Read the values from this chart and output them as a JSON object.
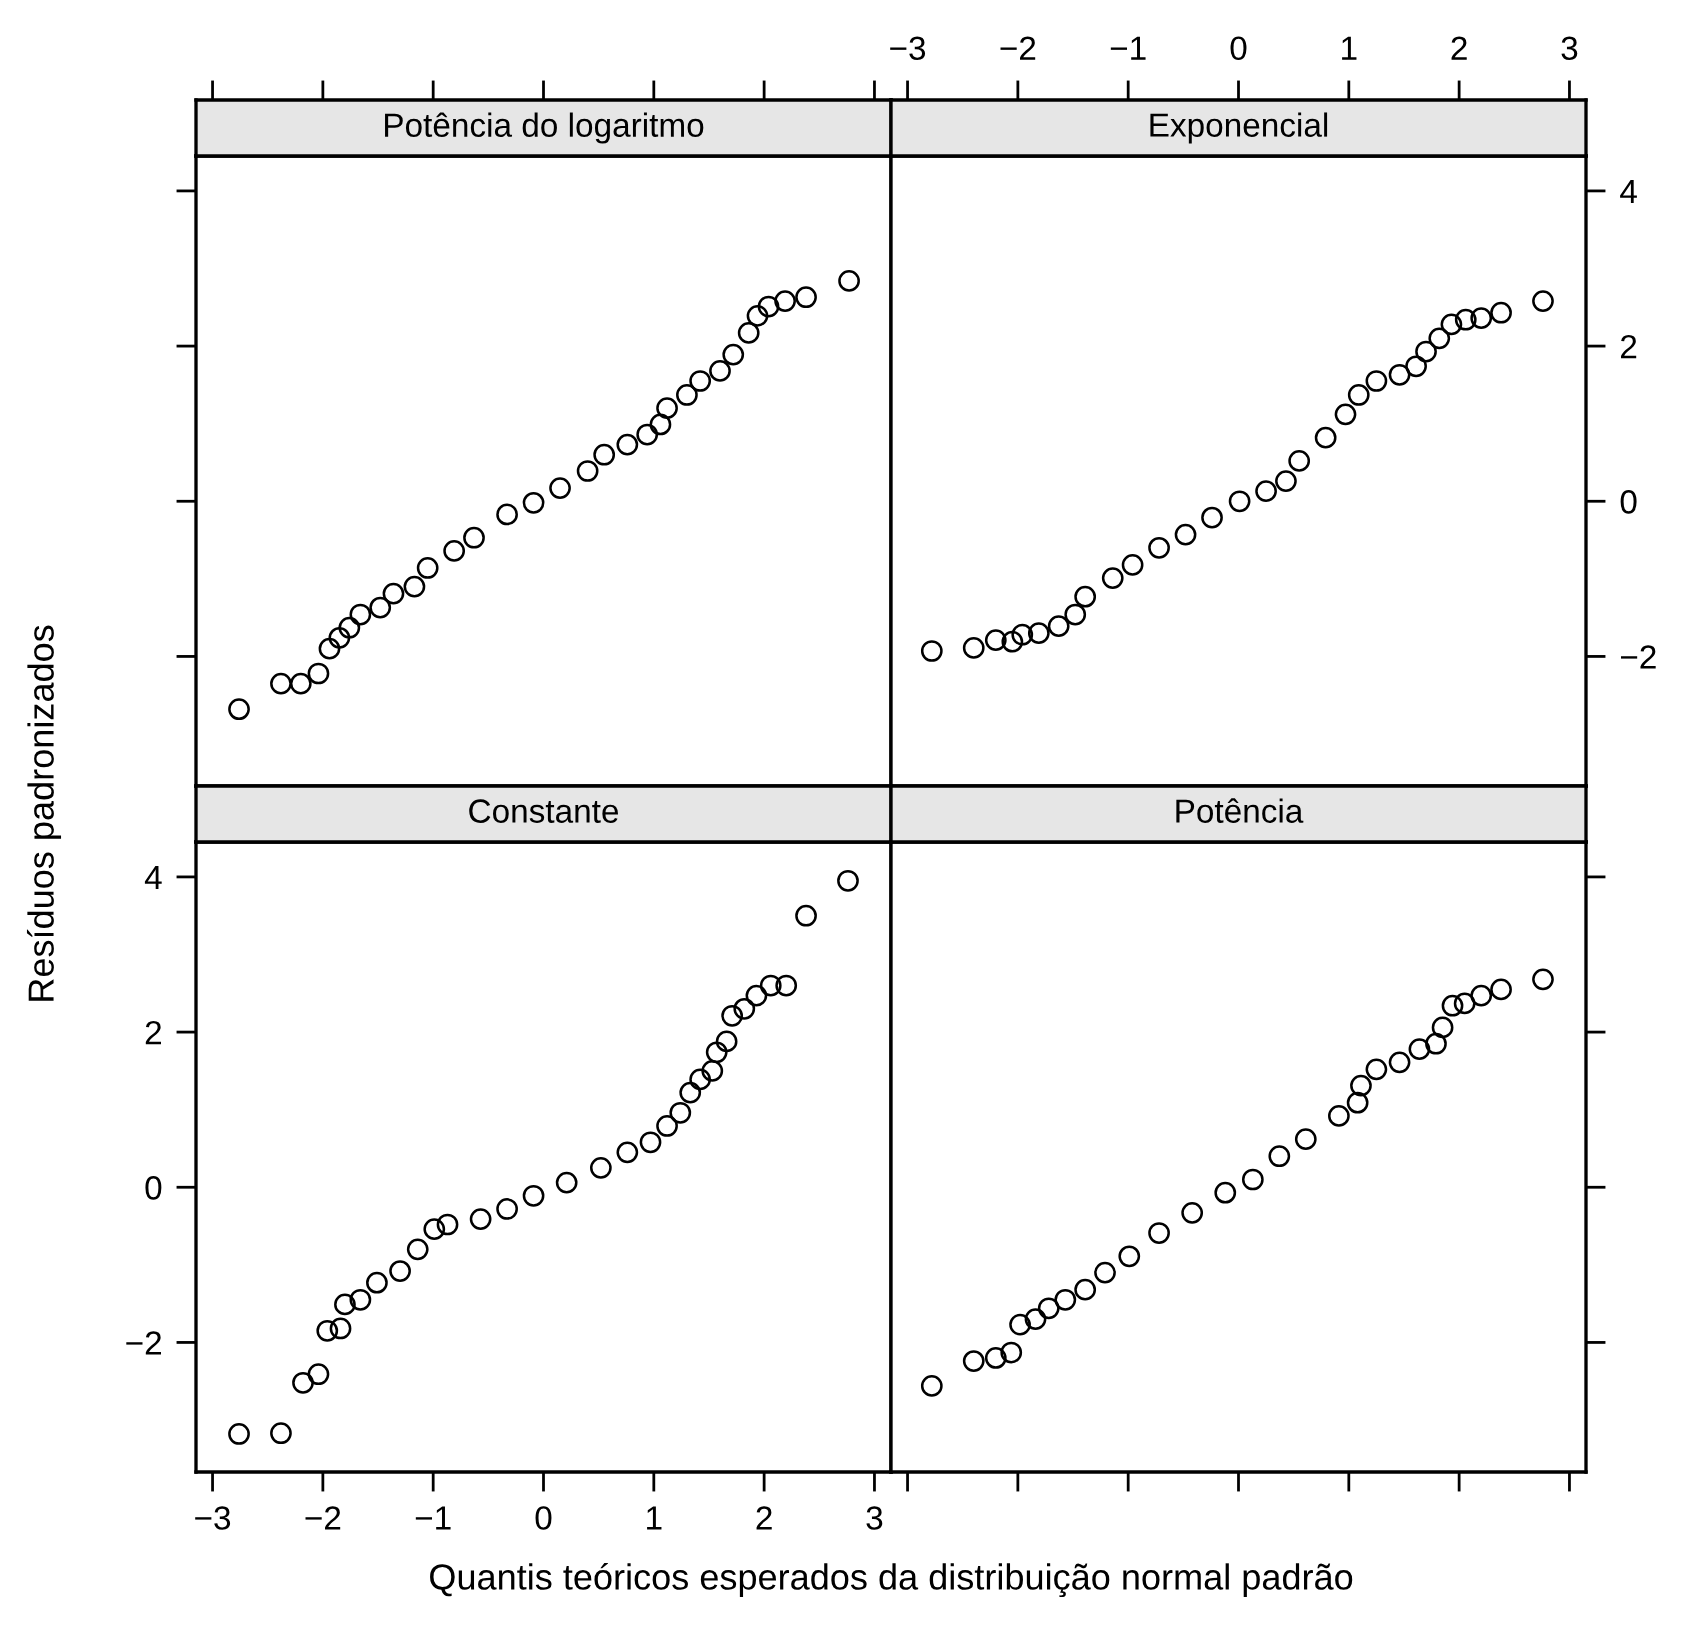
{
  "chart_data": [
    {
      "type": "scatter",
      "title": "Potência do logaritmo",
      "marker": "circle",
      "color": "#000000",
      "tick_labels": false,
      "x": [
        -2.76,
        -2.38,
        -2.2,
        -2.04,
        -1.94,
        -1.85,
        -1.76,
        -1.66,
        -1.48,
        -1.36,
        -1.17,
        -1.05,
        -0.81,
        -0.63,
        -0.33,
        -0.09,
        0.15,
        0.4,
        0.55,
        0.76,
        0.94,
        1.06,
        1.12,
        1.3,
        1.42,
        1.6,
        1.72,
        1.86,
        1.94,
        2.04,
        2.19,
        2.38,
        2.77
      ],
      "values": [
        -2.68,
        -2.35,
        -2.35,
        -2.22,
        -1.9,
        -1.76,
        -1.63,
        -1.46,
        -1.37,
        -1.19,
        -1.1,
        -0.86,
        -0.64,
        -0.47,
        -0.17,
        -0.02,
        0.17,
        0.39,
        0.6,
        0.73,
        0.86,
        0.99,
        1.2,
        1.37,
        1.55,
        1.68,
        1.89,
        2.17,
        2.39,
        2.51,
        2.58,
        2.63,
        2.84
      ],
      "xlim": [
        -3.15,
        3.15
      ],
      "ylim": [
        -3.67,
        4.45
      ],
      "xticks": [
        -3,
        -2,
        -1,
        0,
        1,
        2,
        3
      ],
      "yticks": [
        -2,
        0,
        2,
        4
      ]
    },
    {
      "type": "scatter",
      "title": "Exponencial",
      "marker": "circle",
      "color": "#000000",
      "x": [
        -2.78,
        -2.4,
        -2.2,
        -2.05,
        -1.96,
        -1.81,
        -1.63,
        -1.48,
        -1.39,
        -1.14,
        -0.96,
        -0.72,
        -0.48,
        -0.24,
        0.01,
        0.25,
        0.43,
        0.55,
        0.79,
        0.97,
        1.09,
        1.25,
        1.46,
        1.61,
        1.7,
        1.82,
        1.93,
        2.06,
        2.2,
        2.38,
        2.76
      ],
      "values": [
        -1.93,
        -1.89,
        -1.79,
        -1.81,
        -1.72,
        -1.7,
        -1.61,
        -1.46,
        -1.23,
        -0.99,
        -0.82,
        -0.6,
        -0.43,
        -0.21,
        0.0,
        0.13,
        0.26,
        0.52,
        0.82,
        1.12,
        1.37,
        1.55,
        1.63,
        1.74,
        1.93,
        2.1,
        2.28,
        2.34,
        2.36,
        2.43,
        2.58
      ],
      "xlim": [
        -3.15,
        3.15
      ],
      "ylim": [
        -3.67,
        4.45
      ],
      "xticks": [
        -3,
        -2,
        -1,
        0,
        1,
        2,
        3
      ],
      "yticks": [
        -2,
        0,
        2,
        4
      ]
    },
    {
      "type": "scatter",
      "title": "Constante",
      "marker": "circle",
      "color": "#000000",
      "xlabel": "Quantis teóricos esperados da distribuição normal padrão",
      "ylabel": "Resíduos padronizados",
      "x": [
        -2.76,
        -2.38,
        -2.18,
        -2.04,
        -1.96,
        -1.84,
        -1.8,
        -1.66,
        -1.51,
        -1.3,
        -1.14,
        -0.99,
        -0.87,
        -0.57,
        -0.33,
        -0.09,
        0.21,
        0.52,
        0.76,
        0.97,
        1.12,
        1.24,
        1.33,
        1.42,
        1.53,
        1.57,
        1.66,
        1.71,
        1.82,
        1.93,
        2.06,
        2.2,
        2.38,
        2.76
      ],
      "values": [
        -3.18,
        -3.17,
        -2.52,
        -2.41,
        -1.85,
        -1.82,
        -1.51,
        -1.45,
        -1.23,
        -1.08,
        -0.8,
        -0.54,
        -0.48,
        -0.41,
        -0.28,
        -0.11,
        0.06,
        0.25,
        0.45,
        0.58,
        0.79,
        0.96,
        1.22,
        1.39,
        1.5,
        1.74,
        1.88,
        2.21,
        2.3,
        2.47,
        2.6,
        2.6,
        3.5,
        3.95
      ],
      "xlim": [
        -3.15,
        3.15
      ],
      "ylim": [
        -3.67,
        4.45
      ],
      "xticks": [
        -3,
        -2,
        -1,
        0,
        1,
        2,
        3
      ],
      "yticks": [
        -2,
        0,
        2,
        4
      ]
    },
    {
      "type": "scatter",
      "title": "Potência",
      "marker": "circle",
      "color": "#000000",
      "tick_labels": false,
      "x": [
        -2.78,
        -2.4,
        -2.2,
        -2.06,
        -1.98,
        -1.84,
        -1.72,
        -1.57,
        -1.39,
        -1.21,
        -0.99,
        -0.72,
        -0.42,
        -0.12,
        0.13,
        0.37,
        0.61,
        0.91,
        1.08,
        1.11,
        1.25,
        1.46,
        1.64,
        1.79,
        1.85,
        1.94,
        2.05,
        2.2,
        2.38,
        2.76
      ],
      "values": [
        -2.56,
        -2.24,
        -2.2,
        -2.13,
        -1.77,
        -1.7,
        -1.56,
        -1.45,
        -1.32,
        -1.1,
        -0.89,
        -0.59,
        -0.33,
        -0.07,
        0.1,
        0.4,
        0.62,
        0.92,
        1.09,
        1.31,
        1.52,
        1.61,
        1.78,
        1.85,
        2.06,
        2.34,
        2.37,
        2.47,
        2.55,
        2.68
      ],
      "xlim": [
        -3.15,
        3.15
      ],
      "ylim": [
        -3.67,
        4.45
      ],
      "xticks": [
        -3,
        -2,
        -1,
        0,
        1,
        2,
        3
      ],
      "yticks": [
        -2,
        0,
        2,
        4
      ]
    }
  ]
}
